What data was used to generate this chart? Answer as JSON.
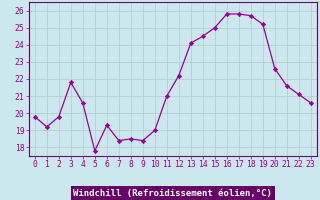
{
  "x": [
    0,
    1,
    2,
    3,
    4,
    5,
    6,
    7,
    8,
    9,
    10,
    11,
    12,
    13,
    14,
    15,
    16,
    17,
    18,
    19,
    20,
    21,
    22,
    23
  ],
  "y": [
    19.8,
    19.2,
    19.8,
    21.8,
    20.6,
    17.8,
    19.3,
    18.4,
    18.5,
    18.4,
    19.0,
    21.0,
    22.2,
    24.1,
    24.5,
    25.0,
    25.8,
    25.8,
    25.7,
    25.2,
    22.6,
    21.6,
    21.1,
    20.6
  ],
  "line_color": "#990099",
  "marker": "D",
  "marker_size": 2.2,
  "bg_color": "#cce8ee",
  "grid_color": "#aacccc",
  "xlabel": "Windchill (Refroidissement éolien,°C)",
  "xlim": [
    -0.5,
    23.5
  ],
  "ylim": [
    17.5,
    26.5
  ],
  "yticks": [
    18,
    19,
    20,
    21,
    22,
    23,
    24,
    25,
    26
  ],
  "xticks": [
    0,
    1,
    2,
    3,
    4,
    5,
    6,
    7,
    8,
    9,
    10,
    11,
    12,
    13,
    14,
    15,
    16,
    17,
    18,
    19,
    20,
    21,
    22,
    23
  ],
  "tick_label_fontsize": 5.8,
  "xlabel_fontsize": 6.5,
  "xlabel_bg": "#660066",
  "tick_color": "#990099",
  "spine_color": "#660066"
}
